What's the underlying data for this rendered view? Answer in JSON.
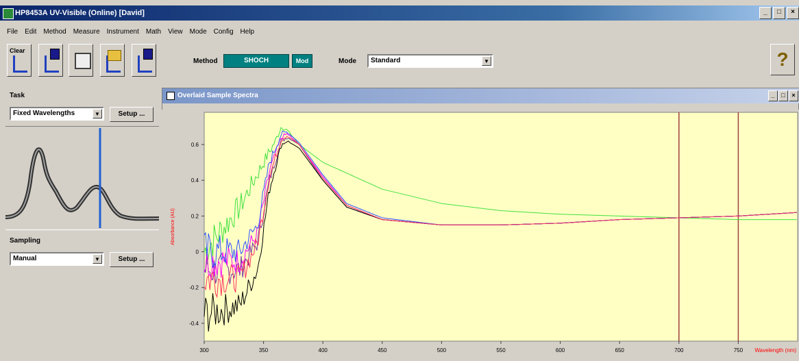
{
  "window": {
    "title": "HP8453A UV-Visible (Online) [David]",
    "buttons": [
      "_",
      "□",
      "×"
    ]
  },
  "menu": [
    "File",
    "Edit",
    "Method",
    "Measure",
    "Instrument",
    "Math",
    "View",
    "Mode",
    "Config",
    "Help"
  ],
  "toolbar": {
    "clear_label": "Clear",
    "method_label": "Method",
    "method_value": "SHOCH",
    "method_mod_label": "Mod",
    "mode_label": "Mode",
    "mode_value": "Standard",
    "help_glyph": "?"
  },
  "task": {
    "title": "Task",
    "value": "Fixed Wavelengths",
    "setup_label": "Setup ..."
  },
  "sampling": {
    "title": "Sampling",
    "value": "Manual",
    "setup_label": "Setup ..."
  },
  "plot_window": {
    "title": "Overlaid Sample Spectra",
    "buttons": [
      "_",
      "□",
      "×"
    ]
  },
  "colors": {
    "plot_bg": "#ffffc4",
    "series": [
      "#40e040",
      "#7030a0",
      "#ff00ff",
      "#000000",
      "#3050ff",
      "#ff3060"
    ],
    "marker": "#a04040",
    "axis_label": "#ff0000"
  },
  "chart_data": {
    "type": "line",
    "ylabel": "Absorbance (AU)",
    "xlabel": "Wavelength (nm)",
    "x_ticks": [
      "300",
      "350",
      "400",
      "450",
      "500",
      "550",
      "600",
      "650",
      "700",
      "750"
    ],
    "y_ticks": [
      "0.6",
      "0.4",
      "0.2",
      "0",
      "-0.2",
      "-0.4"
    ],
    "xlim": [
      300,
      800
    ],
    "ylim": [
      -0.5,
      0.78
    ],
    "marker_lines_nm": [
      700,
      750
    ],
    "series": [
      {
        "color": "#40e040",
        "x": [
          300,
          330,
          350,
          360,
          365,
          370,
          380,
          400,
          450,
          500,
          550,
          600,
          650,
          700,
          750,
          800
        ],
        "y": [
          0.0,
          0.25,
          0.5,
          0.62,
          0.7,
          0.68,
          0.6,
          0.5,
          0.35,
          0.27,
          0.23,
          0.21,
          0.2,
          0.19,
          0.18,
          0.18
        ]
      },
      {
        "color": "#7030a0",
        "x": [
          300,
          330,
          345,
          355,
          365,
          370,
          380,
          400,
          420,
          450,
          500,
          550,
          600,
          650,
          700,
          750,
          800
        ],
        "y": [
          -0.1,
          -0.1,
          0.05,
          0.4,
          0.62,
          0.64,
          0.6,
          0.4,
          0.25,
          0.18,
          0.15,
          0.15,
          0.16,
          0.18,
          0.19,
          0.2,
          0.22
        ]
      },
      {
        "color": "#ff00ff",
        "x": [
          300,
          330,
          345,
          355,
          365,
          370,
          380,
          400,
          420,
          450,
          500,
          550,
          600,
          650,
          700,
          750,
          800
        ],
        "y": [
          -0.05,
          -0.05,
          0.1,
          0.45,
          0.64,
          0.66,
          0.6,
          0.42,
          0.26,
          0.18,
          0.15,
          0.15,
          0.16,
          0.18,
          0.19,
          0.2,
          0.22
        ]
      },
      {
        "color": "#000000",
        "x": [
          300,
          330,
          345,
          355,
          365,
          370,
          380,
          400,
          420,
          450,
          500,
          550,
          600,
          650,
          700,
          750,
          800
        ],
        "y": [
          -0.35,
          -0.3,
          -0.1,
          0.35,
          0.6,
          0.62,
          0.58,
          0.4,
          0.25,
          0.18,
          0.15,
          0.15,
          0.16,
          0.18,
          0.19,
          0.2,
          0.22
        ]
      },
      {
        "color": "#3050ff",
        "x": [
          300,
          330,
          345,
          355,
          365,
          370,
          380,
          400,
          420,
          450,
          500,
          550,
          600,
          650,
          700,
          750,
          800
        ],
        "y": [
          0.0,
          0.0,
          0.15,
          0.5,
          0.66,
          0.67,
          0.61,
          0.43,
          0.27,
          0.19,
          0.15,
          0.15,
          0.16,
          0.18,
          0.19,
          0.2,
          0.22
        ]
      },
      {
        "color": "#ff3060",
        "x": [
          300,
          330,
          345,
          355,
          365,
          370,
          380,
          400,
          420,
          450,
          500,
          550,
          600,
          650,
          700,
          750,
          800
        ],
        "y": [
          -0.15,
          -0.15,
          0.05,
          0.42,
          0.63,
          0.65,
          0.6,
          0.41,
          0.26,
          0.18,
          0.15,
          0.15,
          0.16,
          0.18,
          0.19,
          0.2,
          0.22
        ]
      }
    ]
  }
}
